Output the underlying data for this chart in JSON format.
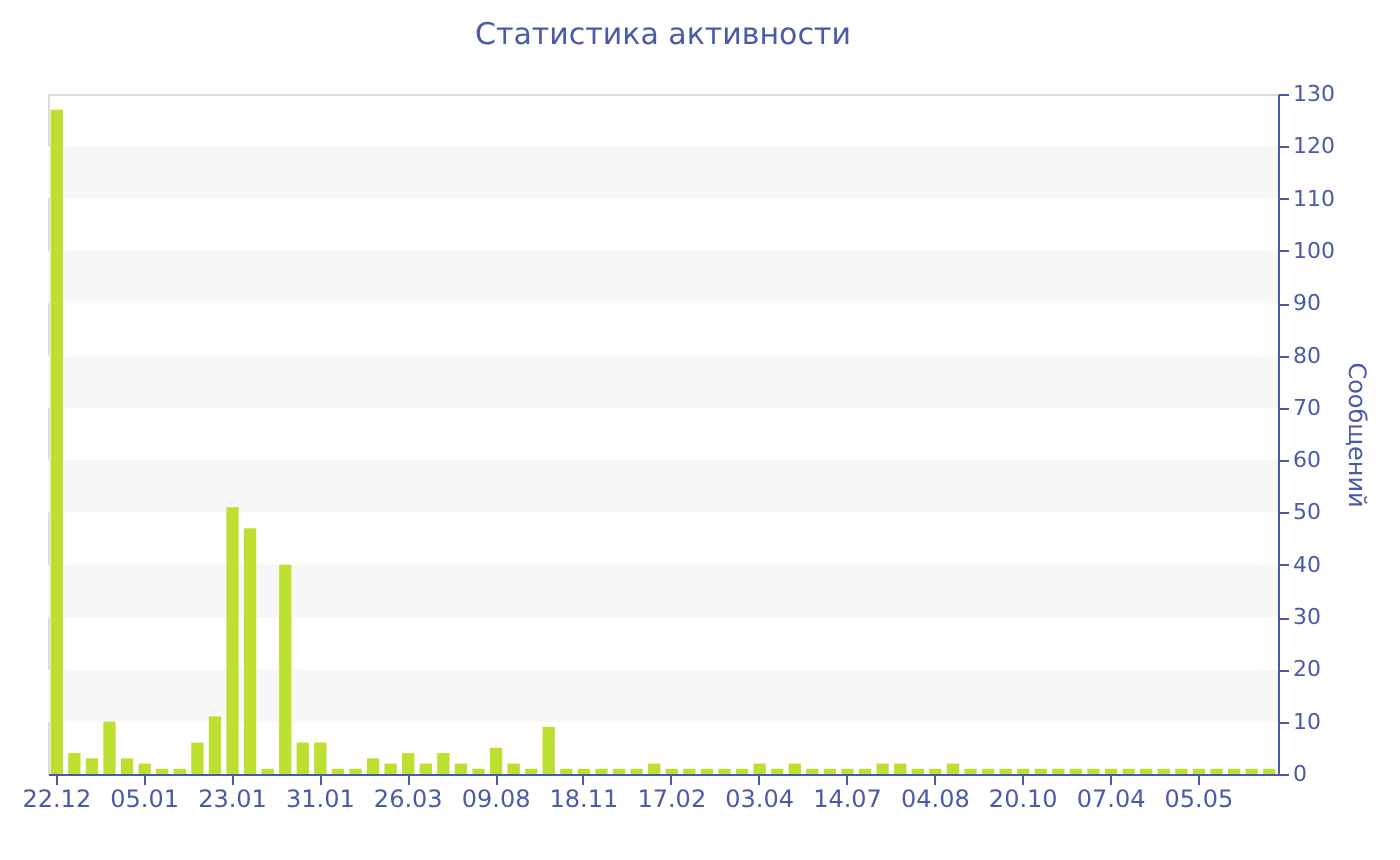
{
  "chart_data": {
    "type": "bar",
    "title": "Статистика активности",
    "ylabel": "Сообщений",
    "categories": [
      "22.12",
      null,
      null,
      null,
      null,
      "05.01",
      null,
      null,
      null,
      null,
      "23.01",
      null,
      null,
      null,
      null,
      "31.01",
      null,
      null,
      null,
      null,
      "26.03",
      null,
      null,
      null,
      null,
      "09.08",
      null,
      null,
      null,
      null,
      "18.11",
      null,
      null,
      null,
      null,
      "17.02",
      null,
      null,
      null,
      null,
      "03.04",
      null,
      null,
      null,
      null,
      "14.07",
      null,
      null,
      null,
      null,
      "04.08",
      null,
      null,
      null,
      null,
      "20.10",
      null,
      null,
      null,
      null,
      "07.04",
      null,
      null,
      null,
      null,
      "05.05",
      null,
      null,
      null,
      null
    ],
    "values": [
      127,
      4,
      3,
      10,
      3,
      2,
      1,
      1,
      6,
      11,
      51,
      47,
      1,
      40,
      6,
      6,
      1,
      1,
      3,
      2,
      4,
      2,
      4,
      2,
      1,
      5,
      2,
      1,
      9,
      1,
      1,
      1,
      1,
      1,
      2,
      1,
      1,
      1,
      1,
      1,
      2,
      1,
      2,
      1,
      1,
      1,
      1,
      2,
      2,
      1,
      1,
      2,
      1,
      1,
      1,
      1,
      1,
      1,
      1,
      1,
      1,
      1,
      1,
      1,
      1,
      1,
      1,
      1,
      1,
      1
    ],
    "color": "#bbe030",
    "ylim": [
      0,
      130
    ],
    "yticks": [
      0,
      10,
      20,
      30,
      40,
      50,
      60,
      70,
      80,
      90,
      100,
      110,
      120,
      130
    ],
    "bands": [
      {
        "axis": "y",
        "from": 10,
        "to": 20,
        "color": "#f7f7f7"
      },
      {
        "axis": "y",
        "from": 30,
        "to": 40,
        "color": "#f7f7f7"
      },
      {
        "axis": "y",
        "from": 50,
        "to": 60,
        "color": "#f7f7f7"
      },
      {
        "axis": "y",
        "from": 70,
        "to": 80,
        "color": "#f7f7f7"
      },
      {
        "axis": "y",
        "from": 90,
        "to": 100,
        "color": "#f7f7f7"
      },
      {
        "axis": "y",
        "from": 110,
        "to": 120,
        "color": "#f7f7f7"
      }
    ],
    "grid": false
  }
}
